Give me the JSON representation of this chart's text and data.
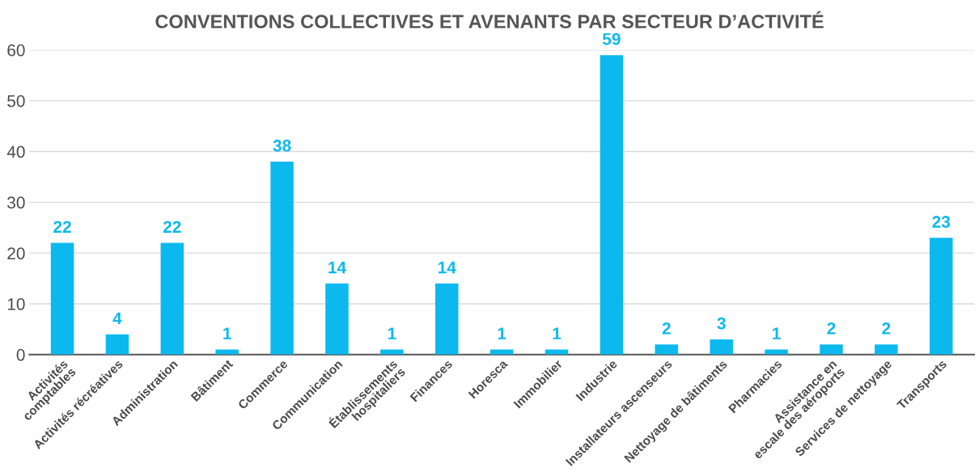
{
  "chart_data": {
    "type": "bar",
    "title": "CONVENTIONS COLLECTIVES ET AVENANTS PAR SECTEUR D’ACTIVITÉ",
    "categories": [
      "Activités\ncomptables",
      "Activités récréatives",
      "Administration",
      "Bâtiment",
      "Commerce",
      "Communication",
      "Établissements\nhospitaliers",
      "Finances",
      "Horesca",
      "Immobilier",
      "Industrie",
      "Installateurs ascenseurs",
      "Nettoyage de bâtiments",
      "Pharmacies",
      "Assistance en\nescale des aéroports",
      "Services de nettoyage",
      "Transports"
    ],
    "values": [
      22,
      4,
      22,
      1,
      38,
      14,
      1,
      14,
      1,
      1,
      59,
      2,
      3,
      1,
      2,
      2,
      23
    ],
    "color": "#0cb9ee",
    "ylim": [
      0,
      60
    ],
    "yticks": [
      0,
      10,
      20,
      30,
      40,
      50,
      60
    ],
    "grid": "y",
    "data_labels": true
  }
}
